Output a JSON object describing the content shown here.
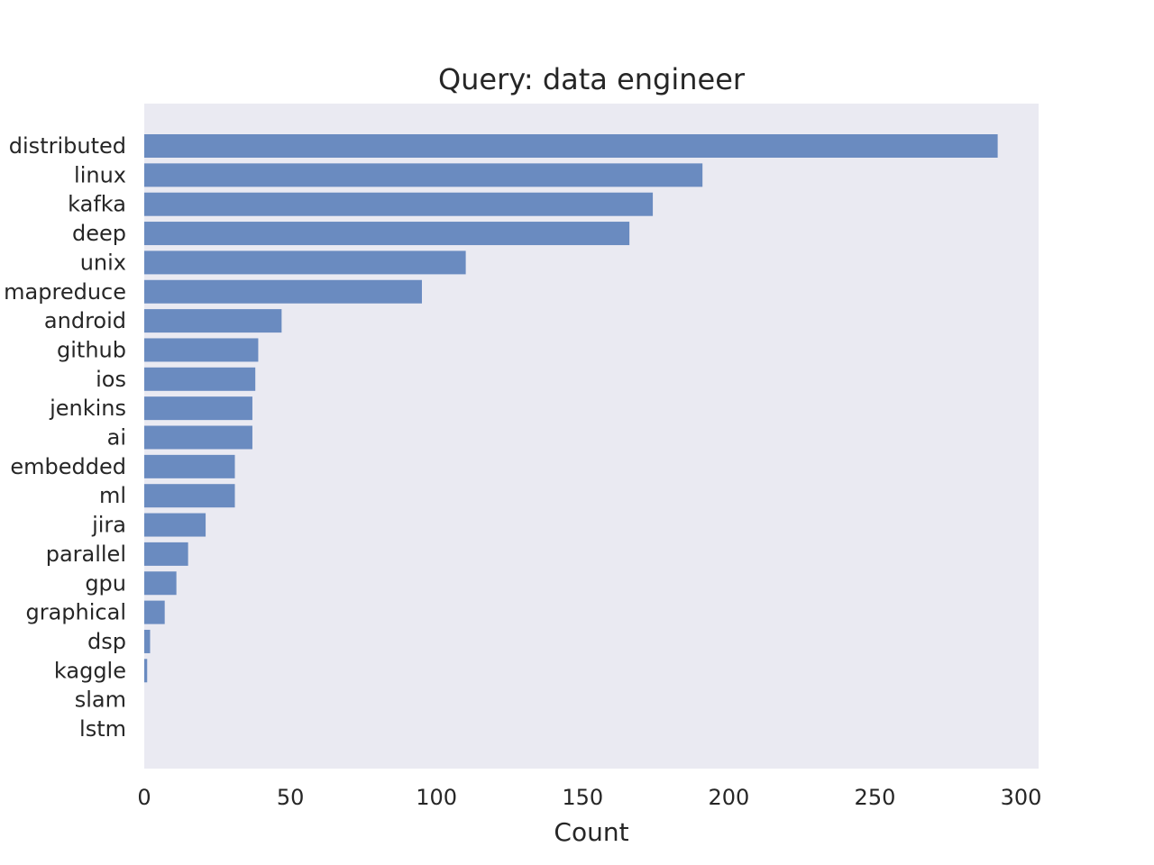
{
  "chart_data": {
    "type": "bar",
    "orientation": "horizontal",
    "title": "Query: data engineer",
    "xlabel": "Count",
    "ylabel": "",
    "xlim": [
      0,
      306
    ],
    "xticks": [
      0,
      50,
      100,
      150,
      200,
      250,
      300
    ],
    "grid": false,
    "categories": [
      "distributed",
      "linux",
      "kafka",
      "deep",
      "unix",
      "mapreduce",
      "android",
      "github",
      "ios",
      "jenkins",
      "ai",
      "embedded",
      "ml",
      "jira",
      "parallel",
      "gpu",
      "graphical",
      "dsp",
      "kaggle",
      "slam",
      "lstm"
    ],
    "values": [
      292,
      191,
      174,
      166,
      110,
      95,
      47,
      39,
      38,
      37,
      37,
      31,
      31,
      21,
      15,
      11,
      7,
      2,
      1,
      0,
      0
    ],
    "colors": {
      "bar": "#6a8bc0",
      "plot_bg": "#eaeaf2",
      "text": "#262626"
    }
  }
}
